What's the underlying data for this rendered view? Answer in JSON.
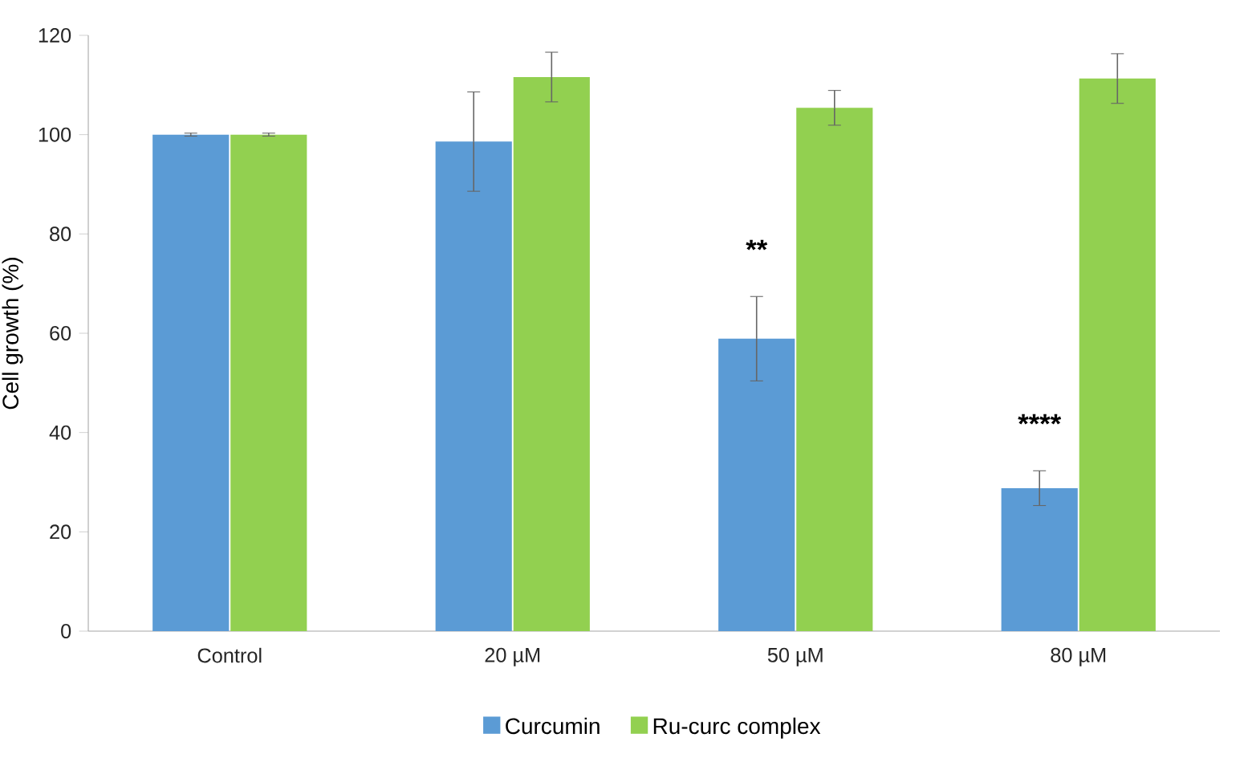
{
  "chart_data": {
    "type": "bar",
    "ylabel": "Cell growth (%)",
    "categories": [
      "Control",
      "20 µM",
      "50 µM",
      "80 µM"
    ],
    "series": [
      {
        "name": "Curcumin",
        "color": "#5b9bd5",
        "values": [
          100,
          98.6,
          58.9,
          28.8
        ],
        "errors": [
          0.3,
          10,
          8.5,
          3.5
        ]
      },
      {
        "name": "Ru-curc complex",
        "color": "#92d050",
        "values": [
          100,
          111.6,
          105.4,
          111.3
        ],
        "errors": [
          0.3,
          5,
          3.5,
          5
        ]
      }
    ],
    "ylim": [
      0,
      120
    ],
    "yticks": [
      0,
      20,
      40,
      60,
      80,
      100,
      120
    ],
    "grid": false,
    "legend": "bottom",
    "annotations": [
      "**",
      "****"
    ]
  }
}
